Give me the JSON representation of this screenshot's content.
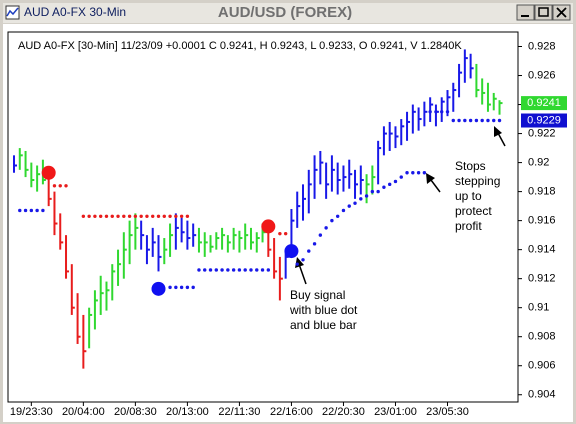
{
  "chart_data": {
    "type": "ohlc",
    "window_title": "AUD A0-FX 30-Min",
    "title": "AUD/USD (FOREX)",
    "info": "AUD A0-FX [30-Min] 11/23/09 +0.0001 C 0.9241, H 0.9243, L 0.9233, O 0.9241, V 1.2840K",
    "categories": [
      null,
      null,
      null,
      "19/23:30",
      null,
      null,
      null,
      null,
      null,
      null,
      null,
      null,
      "20/04:00",
      null,
      null,
      null,
      null,
      null,
      null,
      null,
      null,
      "20/08:30",
      null,
      null,
      null,
      null,
      null,
      null,
      null,
      null,
      "20/13:00",
      null,
      null,
      null,
      null,
      null,
      null,
      null,
      null,
      "22/11:30",
      null,
      null,
      null,
      null,
      null,
      null,
      null,
      null,
      "22/16:00",
      null,
      null,
      null,
      null,
      null,
      null,
      null,
      null,
      "22/20:30",
      null,
      null,
      null,
      null,
      null,
      null,
      null,
      null,
      "23/01:00",
      null,
      null,
      null,
      null,
      null,
      null,
      null,
      null,
      "23/05:30",
      null,
      null,
      null,
      null,
      null,
      null,
      null,
      null,
      null
    ],
    "high": [
      0.9205,
      0.921,
      0.9208,
      0.92,
      0.9198,
      0.9202,
      0.9195,
      0.918,
      0.9165,
      0.915,
      0.913,
      0.911,
      0.9095,
      0.91,
      0.9112,
      0.9122,
      0.9118,
      0.913,
      0.914,
      0.9152,
      0.916,
      0.9165,
      0.916,
      0.915,
      0.9155,
      0.915,
      0.9148,
      0.9158,
      0.9165,
      0.9162,
      0.916,
      0.9158,
      0.9155,
      0.9152,
      0.915,
      0.9152,
      0.9155,
      0.915,
      0.9155,
      0.9153,
      0.9158,
      0.9155,
      0.9152,
      0.9158,
      0.9155,
      0.9148,
      0.9135,
      0.914,
      0.9168,
      0.918,
      0.9185,
      0.9195,
      0.9205,
      0.9208,
      0.92,
      0.9205,
      0.92,
      0.9198,
      0.9202,
      0.9195,
      0.9198,
      0.9192,
      0.9198,
      0.9215,
      0.9225,
      0.9228,
      0.9225,
      0.923,
      0.9235,
      0.924,
      0.9238,
      0.9242,
      0.9245,
      0.924,
      0.9245,
      0.925,
      0.9255,
      0.9268,
      0.9278,
      0.9275,
      0.9268,
      0.9258,
      0.9255,
      0.9248,
      0.9243
    ],
    "low": [
      0.9193,
      0.9195,
      0.919,
      0.9183,
      0.918,
      0.9185,
      0.917,
      0.915,
      0.914,
      0.912,
      0.9095,
      0.9075,
      0.9058,
      0.9072,
      0.9085,
      0.9095,
      0.9098,
      0.9105,
      0.9115,
      0.912,
      0.913,
      0.914,
      0.914,
      0.913,
      0.9135,
      0.9125,
      0.913,
      0.9135,
      0.914,
      0.9145,
      0.914,
      0.9142,
      0.9138,
      0.9135,
      0.9138,
      0.914,
      0.914,
      0.9138,
      0.914,
      0.9138,
      0.914,
      0.914,
      0.9138,
      0.9145,
      0.9135,
      0.912,
      0.9105,
      0.912,
      0.9135,
      0.9155,
      0.916,
      0.9165,
      0.9175,
      0.9185,
      0.9175,
      0.918,
      0.9178,
      0.918,
      0.9182,
      0.9175,
      0.9178,
      0.9172,
      0.9178,
      0.9185,
      0.9205,
      0.9208,
      0.921,
      0.9212,
      0.9215,
      0.922,
      0.9222,
      0.9225,
      0.9228,
      0.9225,
      0.9228,
      0.9232,
      0.9235,
      0.9245,
      0.9255,
      0.9258,
      0.9245,
      0.924,
      0.9235,
      0.9236,
      0.9233
    ],
    "close": [
      0.9198,
      0.9205,
      0.9195,
      0.9188,
      0.9192,
      0.9188,
      0.9175,
      0.9158,
      0.9145,
      0.9125,
      0.91,
      0.908,
      0.907,
      0.9095,
      0.9105,
      0.911,
      0.9112,
      0.9125,
      0.913,
      0.914,
      0.915,
      0.9155,
      0.915,
      0.914,
      0.9145,
      0.9135,
      0.914,
      0.915,
      0.9155,
      0.9152,
      0.9148,
      0.915,
      0.9145,
      0.9145,
      0.9142,
      0.9148,
      0.915,
      0.9145,
      0.915,
      0.9148,
      0.915,
      0.9145,
      0.9148,
      0.9152,
      0.914,
      0.9125,
      0.912,
      0.9135,
      0.916,
      0.917,
      0.9175,
      0.9185,
      0.9195,
      0.92,
      0.9185,
      0.9195,
      0.9188,
      0.919,
      0.9192,
      0.9185,
      0.9188,
      0.9185,
      0.919,
      0.921,
      0.922,
      0.922,
      0.9218,
      0.9225,
      0.9228,
      0.9235,
      0.923,
      0.9235,
      0.924,
      0.9235,
      0.9242,
      0.9245,
      0.925,
      0.9262,
      0.9272,
      0.9265,
      0.925,
      0.9248,
      0.924,
      0.9244,
      0.9241
    ],
    "bar_colors": [
      "#1818e8",
      "#30d830",
      "#30d830",
      "#30d830",
      "#30d830",
      "#30d830",
      "#e81c1c",
      "#e81c1c",
      "#e81c1c",
      "#e81c1c",
      "#e81c1c",
      "#e81c1c",
      "#e81c1c",
      "#30d830",
      "#30d830",
      "#30d830",
      "#30d830",
      "#30d830",
      "#30d830",
      "#30d830",
      "#30d830",
      "#30d830",
      "#1818e8",
      "#1818e8",
      "#1818e8",
      "#1818e8",
      "#30d830",
      "#30d830",
      "#1818e8",
      "#1818e8",
      "#1818e8",
      "#1818e8",
      "#30d830",
      "#30d830",
      "#30d830",
      "#30d830",
      "#30d830",
      "#30d830",
      "#30d830",
      "#30d830",
      "#30d830",
      "#30d830",
      "#30d830",
      "#30d830",
      "#e81c1c",
      "#e81c1c",
      "#e81c1c",
      "#1818e8",
      "#1818e8",
      "#1818e8",
      "#1818e8",
      "#1818e8",
      "#1818e8",
      "#1818e8",
      "#1818e8",
      "#1818e8",
      "#1818e8",
      "#1818e8",
      "#1818e8",
      "#1818e8",
      "#1818e8",
      "#30d830",
      "#30d830",
      "#1818e8",
      "#1818e8",
      "#1818e8",
      "#1818e8",
      "#1818e8",
      "#1818e8",
      "#1818e8",
      "#1818e8",
      "#1818e8",
      "#1818e8",
      "#1818e8",
      "#1818e8",
      "#1818e8",
      "#1818e8",
      "#1818e8",
      "#1818e8",
      "#1818e8",
      "#30d830",
      "#30d830",
      "#30d830",
      "#30d830",
      "#30d830"
    ],
    "stops": [
      {
        "color": "#e81c1c",
        "values": [
          null,
          null,
          null,
          null,
          null,
          null,
          null,
          0.9184,
          0.9184,
          0.9184,
          null,
          null,
          0.9163,
          0.9163,
          0.9163,
          0.9163,
          0.9163,
          0.9163,
          0.9163,
          0.9163,
          0.9163,
          0.9163,
          0.9163,
          0.9163,
          0.9163,
          0.9163,
          0.9163,
          0.9163,
          0.9163,
          0.9163,
          0.9163,
          null,
          null,
          null,
          null,
          null,
          null,
          null,
          null,
          null,
          null,
          null,
          null,
          null,
          null,
          null,
          0.9151,
          0.9151,
          null,
          null,
          null,
          null,
          null,
          null,
          null,
          null,
          null,
          null,
          null,
          null,
          null,
          null,
          null,
          null,
          null,
          null,
          null,
          null,
          null,
          null,
          null,
          null,
          null,
          null,
          null,
          null,
          null,
          null,
          null,
          null,
          null,
          null,
          null,
          null,
          null
        ]
      },
      {
        "color": "#1818e8",
        "values": [
          null,
          0.9167,
          0.9167,
          0.9167,
          0.9167,
          0.9167,
          null,
          null,
          null,
          null,
          null,
          null,
          null,
          null,
          null,
          null,
          null,
          null,
          null,
          null,
          null,
          null,
          null,
          null,
          null,
          null,
          null,
          0.9114,
          0.9114,
          0.9114,
          0.9114,
          0.9114,
          0.9126,
          0.9126,
          0.9126,
          0.9126,
          0.9126,
          0.9126,
          0.9126,
          0.9126,
          0.9126,
          0.9126,
          0.9126,
          0.9126,
          0.9126,
          null,
          null,
          null,
          null,
          0.913,
          0.9133,
          0.9139,
          0.9144,
          0.915,
          0.9155,
          0.916,
          0.9163,
          0.9167,
          0.917,
          0.9172,
          0.9175,
          0.9177,
          0.918,
          0.918,
          0.9183,
          0.9185,
          0.9187,
          0.919,
          0.9193,
          0.9193,
          0.9193,
          0.9193,
          0.9235,
          0.9235,
          0.9235,
          0.9235,
          0.9229,
          0.9229,
          0.9229,
          0.9229,
          0.9229,
          0.9229,
          0.9229,
          0.9229,
          0.9229
        ]
      }
    ],
    "signals": [
      {
        "color": "#f01818",
        "values": [
          null,
          null,
          null,
          null,
          null,
          null,
          0.9193,
          null,
          null,
          null,
          null,
          null,
          null,
          null,
          null,
          null,
          null,
          null,
          null,
          null,
          null,
          null,
          null,
          null,
          null,
          null,
          null,
          null,
          null,
          null,
          null,
          null,
          null,
          null,
          null,
          null,
          null,
          null,
          null,
          null,
          null,
          null,
          null,
          null,
          0.9156,
          null,
          null,
          null,
          null,
          null,
          null,
          null,
          null,
          null,
          null,
          null,
          null,
          null,
          null,
          null,
          null,
          null,
          null,
          null,
          null,
          null,
          null,
          null,
          null,
          null,
          null,
          null,
          null,
          null,
          null,
          null,
          null,
          null,
          null,
          null,
          null,
          null,
          null,
          null,
          null
        ]
      },
      {
        "color": "#1010f0",
        "values": [
          null,
          null,
          null,
          null,
          null,
          null,
          null,
          null,
          null,
          null,
          null,
          null,
          null,
          null,
          null,
          null,
          null,
          null,
          null,
          null,
          null,
          null,
          null,
          null,
          null,
          0.9113,
          null,
          null,
          null,
          null,
          null,
          null,
          null,
          null,
          null,
          null,
          null,
          null,
          null,
          null,
          null,
          null,
          null,
          null,
          null,
          null,
          null,
          null,
          0.9139,
          null,
          null,
          null,
          null,
          null,
          null,
          null,
          null,
          null,
          null,
          null,
          null,
          null,
          null,
          null,
          null,
          null,
          null,
          null,
          null,
          null,
          null,
          null,
          null,
          null,
          null,
          null,
          null,
          null,
          null,
          null,
          null,
          null,
          null,
          null,
          null
        ]
      }
    ],
    "price_labels": [
      {
        "value": 0.9241,
        "label": "0.9241",
        "color": "#30d830",
        "text_color": "#ffffff"
      },
      {
        "value": 0.9229,
        "label": "0.9229",
        "color": "#1010d0",
        "text_color": "#ffffff"
      }
    ],
    "annotations": [
      {
        "lines": [
          "Buy signal",
          "with blue dot",
          "and blue bar"
        ]
      },
      {
        "lines": [
          "Stops",
          "stepping",
          "up to",
          "protect",
          "profit"
        ]
      }
    ],
    "ylim": [
      0.9035,
      0.929
    ],
    "yticks": [
      0.904,
      0.906,
      0.908,
      0.91,
      0.912,
      0.914,
      0.916,
      0.918,
      0.92,
      0.922,
      0.924,
      0.926,
      0.928
    ],
    "grid": false
  }
}
